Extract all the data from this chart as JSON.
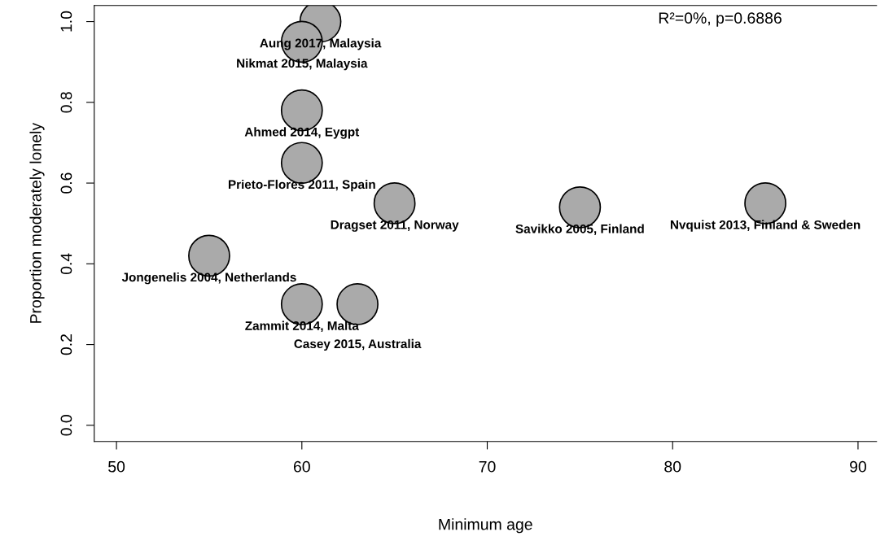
{
  "chart_data": {
    "type": "bubble",
    "xlabel": "Minimum age",
    "ylabel": "Proportion moderately lonely",
    "x": [
      61,
      60,
      60,
      60,
      65,
      75,
      85,
      55,
      60,
      63
    ],
    "values": [
      1.0,
      0.95,
      0.78,
      0.65,
      0.55,
      0.54,
      0.55,
      0.42,
      0.3,
      0.3
    ],
    "sizes": [
      1,
      1,
      1,
      1,
      1,
      1,
      1,
      1,
      1,
      1
    ],
    "color": "#aaaaaa",
    "marker": "circle",
    "xlim": [
      48.8,
      91
    ],
    "ylim": [
      -0.04,
      1.04
    ],
    "xticks": [
      50,
      60,
      70,
      80,
      90
    ],
    "yticks": [
      {
        "value": 0,
        "label": "0.0"
      },
      0.2,
      0.4,
      0.6,
      0.8,
      {
        "value": 1,
        "label": "1.0"
      }
    ],
    "grid": false,
    "legend": false,
    "annotations": [
      "R²=0%, p=0.6886",
      {
        "text": "Aung 2017, Malaysia",
        "x": 61,
        "y": 1.0
      },
      {
        "text": "Nikmat 2015, Malaysia",
        "x": 60,
        "y": 0.95
      },
      {
        "text": "Ahmed 2014, Eygpt",
        "x": 60,
        "y": 0.78
      },
      {
        "text": "Prieto-Flores 2011, Spain",
        "x": 60,
        "y": 0.65
      },
      {
        "text": "Dragset 2011, Norway",
        "x": 65,
        "y": 0.55
      },
      {
        "text": "Savikko 2005, Finland",
        "x": 75,
        "y": 0.54
      },
      {
        "text": "Nvquist 2013, Finland & Sweden",
        "x": 85,
        "y": 0.55
      },
      {
        "text": "Jongenelis 2004, Netherlands",
        "x": 55,
        "y": 0.42
      },
      {
        "text": "Zammit 2014, Malta",
        "x": 60,
        "y": 0.3
      },
      {
        "text": "Casey 2015, Australia",
        "x": 63,
        "y": 0.3
      }
    ]
  }
}
